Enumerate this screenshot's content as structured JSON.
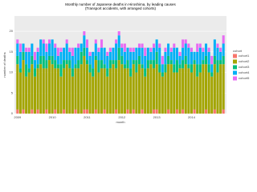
{
  "chart_data": {
    "type": "stacked-bar",
    "title": "Monthly number of Japanese deaths in Hiroshima, by leading causes",
    "subtitle": "(Transport accidents, with arranged cohorts)",
    "x_label": "month",
    "y_label": "number of deaths",
    "legend_title": "cohort",
    "categories": [
      "2009",
      null,
      null,
      null,
      null,
      null,
      null,
      null,
      null,
      null,
      null,
      null,
      "2010",
      null,
      null,
      null,
      null,
      null,
      null,
      null,
      null,
      null,
      null,
      null,
      "2011",
      null,
      null,
      null,
      null,
      null,
      null,
      null,
      null,
      null,
      null,
      null,
      "2012",
      null,
      null,
      null,
      null,
      null,
      null,
      null,
      null,
      null,
      null,
      null,
      "2013",
      null,
      null,
      null,
      null,
      null,
      null,
      null,
      null,
      null,
      null,
      null,
      "2014",
      null,
      null,
      null,
      null,
      null,
      null,
      null,
      null,
      null,
      null,
      null
    ],
    "series": [
      {
        "name": "cohort1",
        "color": "#F8766D",
        "values": [
          1,
          0,
          1,
          0,
          0,
          1,
          0,
          1,
          0,
          0,
          1,
          0,
          0,
          1,
          0,
          0,
          1,
          0,
          0,
          0,
          1,
          0,
          0,
          1,
          1,
          0,
          0,
          1,
          0,
          0,
          1,
          0,
          0,
          0,
          1,
          0,
          0,
          0,
          1,
          0,
          1,
          0,
          0,
          1,
          0,
          0,
          0,
          1,
          1,
          0,
          0,
          0,
          1,
          0,
          0,
          1,
          0,
          1,
          0,
          0,
          0,
          1,
          0,
          0,
          0,
          1,
          0,
          0,
          1,
          0,
          0,
          1
        ]
      },
      {
        "name": "cohort2",
        "color": "#A3A500",
        "values": [
          11,
          10,
          12,
          9,
          10,
          11,
          9,
          10,
          12,
          11,
          10,
          13,
          12,
          10,
          11,
          9,
          10,
          12,
          11,
          9,
          10,
          11,
          12,
          13,
          11,
          10,
          9,
          12,
          10,
          11,
          10,
          9,
          11,
          12,
          10,
          13,
          12,
          11,
          10,
          9,
          11,
          10,
          12,
          10,
          9,
          11,
          12,
          10,
          11,
          10,
          9,
          10,
          11,
          12,
          10,
          9,
          11,
          10,
          12,
          11,
          10,
          11,
          9,
          10,
          12,
          11,
          10,
          9,
          11,
          10,
          12,
          11
        ]
      },
      {
        "name": "cohort3",
        "color": "#00BF7D",
        "values": [
          2,
          1,
          2,
          3,
          1,
          2,
          2,
          1,
          2,
          3,
          2,
          1,
          2,
          2,
          1,
          3,
          2,
          1,
          2,
          2,
          1,
          2,
          3,
          2,
          1,
          2,
          2,
          1,
          3,
          2,
          1,
          2,
          2,
          1,
          2,
          3,
          2,
          1,
          2,
          2,
          1,
          3,
          2,
          1,
          2,
          2,
          1,
          2,
          3,
          2,
          1,
          2,
          2,
          1,
          2,
          3,
          1,
          2,
          2,
          1,
          2,
          1,
          3,
          2,
          1,
          2,
          2,
          1,
          2,
          3,
          1,
          2
        ]
      },
      {
        "name": "cohort4",
        "color": "#00B0F6",
        "values": [
          3,
          4,
          2,
          3,
          4,
          3,
          2,
          3,
          4,
          3,
          2,
          3,
          4,
          3,
          2,
          3,
          3,
          4,
          2,
          3,
          4,
          3,
          2,
          3,
          3,
          2,
          4,
          3,
          2,
          3,
          4,
          3,
          2,
          3,
          4,
          3,
          2,
          3,
          3,
          4,
          2,
          3,
          2,
          4,
          3,
          3,
          2,
          3,
          3,
          4,
          2,
          3,
          3,
          2,
          4,
          3,
          2,
          3,
          3,
          4,
          3,
          2,
          3,
          4,
          2,
          3,
          3,
          2,
          4,
          3,
          2,
          3
        ]
      },
      {
        "name": "cohort5",
        "color": "#E76BF3",
        "values": [
          1,
          2,
          0,
          1,
          1,
          0,
          2,
          1,
          0,
          1,
          2,
          1,
          0,
          1,
          2,
          1,
          0,
          1,
          1,
          2,
          0,
          1,
          0,
          1,
          2,
          1,
          0,
          1,
          1,
          2,
          0,
          1,
          1,
          0,
          1,
          1,
          1,
          2,
          0,
          1,
          1,
          0,
          1,
          1,
          2,
          0,
          1,
          1,
          0,
          1,
          2,
          1,
          0,
          1,
          1,
          0,
          1,
          2,
          1,
          1,
          1,
          0,
          2,
          1,
          1,
          0,
          1,
          2,
          0,
          1,
          1,
          2
        ]
      }
    ],
    "ylim": [
      0,
      23.7
    ],
    "yticks": [
      0,
      5,
      10,
      15,
      20
    ],
    "grid": true
  }
}
